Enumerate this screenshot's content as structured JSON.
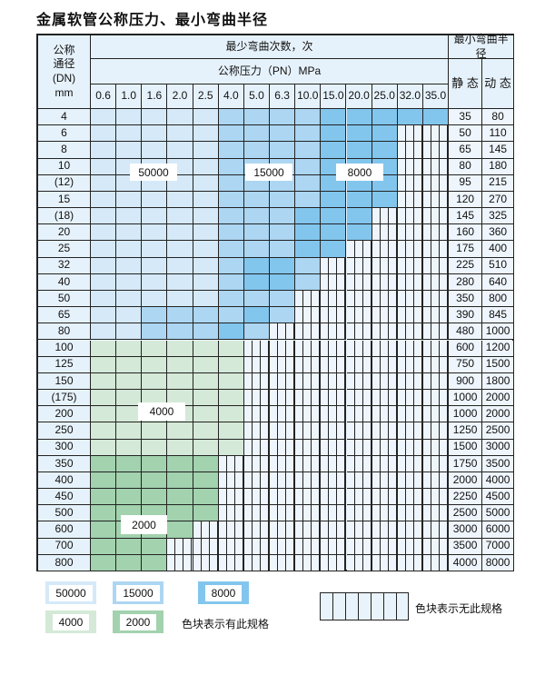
{
  "title": "金属软管公称压力、最小弯曲半径",
  "header": {
    "dn_label": "公称\n通径\n(DN)\nmm",
    "cycles_label": "最少弯曲次数，次",
    "pressure_label": "公称压力（PN）MPa",
    "radius_label": "最小弯曲半径",
    "static_label": "静 态",
    "dynamic_label": "动 态",
    "pressures": [
      "0.6",
      "1.0",
      "1.6",
      "2.0",
      "2.5",
      "4.0",
      "5.0",
      "6.3",
      "10.0",
      "15.0",
      "20.0",
      "25.0",
      "32.0",
      "35.0"
    ]
  },
  "colors": {
    "L": "#d5e9f8",
    "M": "#acd6f2",
    "D": "#82c6ee",
    "G": "#d4e9d7",
    "H": "#a2d2ae"
  },
  "rows": [
    {
      "dn": "4",
      "static": "35",
      "dynamic": "80",
      "zones": "LLLLLMMMMDDDDD"
    },
    {
      "dn": "6",
      "static": "50",
      "dynamic": "110",
      "zones": "LLLLLMMMMDDD"
    },
    {
      "dn": "8",
      "static": "65",
      "dynamic": "145",
      "zones": "LLLLLMMMMDDD"
    },
    {
      "dn": "10",
      "static": "80",
      "dynamic": "180",
      "zones": "LLLLLMMMMDDD"
    },
    {
      "dn": "(12)",
      "static": "95",
      "dynamic": "215",
      "zones": "LLLLLMMMMDDD"
    },
    {
      "dn": "15",
      "static": "120",
      "dynamic": "270",
      "zones": "LLLLLMMMMDDD"
    },
    {
      "dn": "(18)",
      "static": "145",
      "dynamic": "325",
      "zones": "LLLLLMMMDDD"
    },
    {
      "dn": "20",
      "static": "160",
      "dynamic": "360",
      "zones": "LLLLLMMMDDD"
    },
    {
      "dn": "25",
      "static": "175",
      "dynamic": "400",
      "zones": "LLLLLMMMDD"
    },
    {
      "dn": "32",
      "static": "225",
      "dynamic": "510",
      "zones": "LLLLLMDDM"
    },
    {
      "dn": "40",
      "static": "280",
      "dynamic": "640",
      "zones": "LLLLLMDDM"
    },
    {
      "dn": "50",
      "static": "350",
      "dynamic": "800",
      "zones": "LLLLLMMM"
    },
    {
      "dn": "65",
      "static": "390",
      "dynamic": "845",
      "zones": "LLMMMMDM"
    },
    {
      "dn": "80",
      "static": "480",
      "dynamic": "1000",
      "zones": "LLMMMDM"
    },
    {
      "dn": "100",
      "static": "600",
      "dynamic": "1200",
      "zones": "GGGGGG"
    },
    {
      "dn": "125",
      "static": "750",
      "dynamic": "1500",
      "zones": "GGGGGG"
    },
    {
      "dn": "150",
      "static": "900",
      "dynamic": "1800",
      "zones": "GGGGGG"
    },
    {
      "dn": "(175)",
      "static": "1000",
      "dynamic": "2000",
      "zones": "GGGGGG"
    },
    {
      "dn": "200",
      "static": "1000",
      "dynamic": "2000",
      "zones": "GGGGGG"
    },
    {
      "dn": "250",
      "static": "1250",
      "dynamic": "2500",
      "zones": "GGGGGG"
    },
    {
      "dn": "300",
      "static": "1500",
      "dynamic": "3000",
      "zones": "GGGGGG"
    },
    {
      "dn": "350",
      "static": "1750",
      "dynamic": "3500",
      "zones": "HHHHH"
    },
    {
      "dn": "400",
      "static": "2000",
      "dynamic": "4000",
      "zones": "HHHHH"
    },
    {
      "dn": "450",
      "static": "2250",
      "dynamic": "4500",
      "zones": "HHHHH"
    },
    {
      "dn": "500",
      "static": "2500",
      "dynamic": "5000",
      "zones": "HHHHH"
    },
    {
      "dn": "600",
      "static": "3000",
      "dynamic": "6000",
      "zones": "HHHH"
    },
    {
      "dn": "700",
      "static": "3500",
      "dynamic": "7000",
      "zones": "HHH"
    },
    {
      "dn": "800",
      "static": "4000",
      "dynamic": "8000",
      "zones": "HHH"
    }
  ],
  "zone_labels": {
    "L": "50000",
    "M": "15000",
    "D": "8000",
    "G": "4000",
    "H": "2000"
  },
  "legend": {
    "items": [
      {
        "zone": "L",
        "label": "50000"
      },
      {
        "zone": "M",
        "label": "15000"
      },
      {
        "zone": "D",
        "label": "8000"
      },
      {
        "zone": "G",
        "label": "4000"
      },
      {
        "zone": "H",
        "label": "2000"
      }
    ],
    "available_text": "色块表示有此规格",
    "unavailable_text": "色块表示无此规格"
  }
}
